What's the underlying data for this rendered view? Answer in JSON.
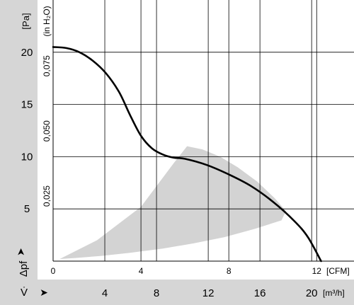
{
  "chart_data": {
    "type": "line",
    "title": "",
    "y_axis": {
      "unit_label": "[Pa]",
      "symbol_label": "Δpf",
      "ticks": [
        5,
        10,
        15,
        20
      ],
      "ylim": [
        0,
        25
      ]
    },
    "y_axis_secondary": {
      "unit_label": "(in H₂O)",
      "ticks": [
        "0,025",
        "0,050",
        "0,075"
      ]
    },
    "x_axis": {
      "unit_label": "[CFM]",
      "ticks": [
        0,
        4,
        8,
        12
      ],
      "xlim": [
        0,
        13.7
      ]
    },
    "x_axis_secondary": {
      "symbol_label": "V̇",
      "unit_label": "[m³/h]",
      "ticks": [
        4,
        8,
        12,
        16,
        20
      ]
    },
    "grid": true,
    "series": [
      {
        "color": "#000000",
        "x": [
          0,
          0.6,
          1.2,
          1.8,
          2.4,
          3.0,
          3.5,
          4.0,
          4.5,
          5.0,
          5.5,
          6.0,
          7.0,
          8.0,
          9.0,
          10.0,
          11.0,
          11.6,
          12.2
        ],
        "y": [
          20.5,
          20.4,
          20.0,
          19.2,
          18.0,
          16.2,
          14.0,
          12.0,
          10.8,
          10.2,
          9.9,
          9.8,
          9.2,
          8.3,
          7.2,
          5.7,
          3.8,
          2.3,
          0
        ]
      }
    ],
    "operating_area": {
      "color": "#d3d3d3",
      "x": [
        0.3,
        2.0,
        4.0,
        5.5,
        6.1,
        6.8,
        7.6,
        8.4,
        9.3,
        10.1,
        10.6,
        10.4,
        9.2,
        7.8,
        6.4,
        5.0,
        3.5,
        2.2,
        1.0
      ],
      "y": [
        0.2,
        2.0,
        5.2,
        9.4,
        11.0,
        10.7,
        10.0,
        9.0,
        7.6,
        6.0,
        4.8,
        3.9,
        3.1,
        2.3,
        1.7,
        1.2,
        0.8,
        0.5,
        0.3
      ]
    }
  }
}
